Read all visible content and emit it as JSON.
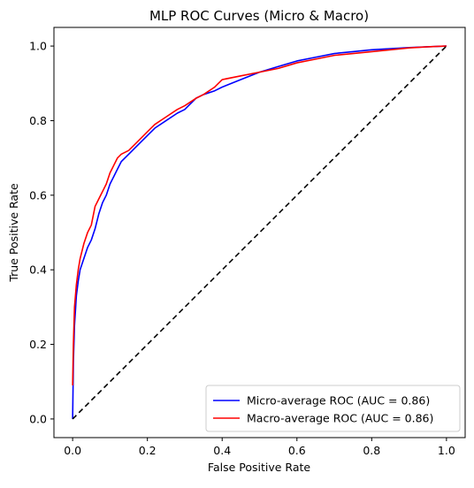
{
  "chart_data": {
    "type": "line",
    "title": "MLP ROC Curves (Micro & Macro)",
    "xlabel": "False Positive Rate",
    "ylabel": "True Positive Rate",
    "xlim": [
      -0.05,
      1.05
    ],
    "ylim": [
      -0.05,
      1.05
    ],
    "xticks": [
      0.0,
      0.2,
      0.4,
      0.6,
      0.8,
      1.0
    ],
    "yticks": [
      0.0,
      0.2,
      0.4,
      0.6,
      0.8,
      1.0
    ],
    "xtick_labels": [
      "0.0",
      "0.2",
      "0.4",
      "0.6",
      "0.8",
      "1.0"
    ],
    "ytick_labels": [
      "0.0",
      "0.2",
      "0.4",
      "0.6",
      "0.8",
      "1.0"
    ],
    "grid": false,
    "legend_position": "lower-right",
    "series": [
      {
        "name": "Micro-average ROC (AUC = 0.86)",
        "color": "#0000ff",
        "x": [
          0.0,
          0.002,
          0.005,
          0.01,
          0.015,
          0.02,
          0.03,
          0.04,
          0.05,
          0.06,
          0.07,
          0.08,
          0.09,
          0.1,
          0.11,
          0.12,
          0.13,
          0.15,
          0.17,
          0.2,
          0.22,
          0.25,
          0.28,
          0.3,
          0.33,
          0.35,
          0.38,
          0.4,
          0.45,
          0.5,
          0.55,
          0.6,
          0.65,
          0.7,
          0.75,
          0.8,
          0.85,
          0.9,
          0.95,
          1.0
        ],
        "y": [
          0.0,
          0.15,
          0.25,
          0.33,
          0.37,
          0.4,
          0.43,
          0.46,
          0.48,
          0.51,
          0.55,
          0.58,
          0.6,
          0.63,
          0.65,
          0.67,
          0.69,
          0.71,
          0.73,
          0.76,
          0.78,
          0.8,
          0.82,
          0.83,
          0.86,
          0.87,
          0.88,
          0.89,
          0.91,
          0.93,
          0.945,
          0.96,
          0.97,
          0.98,
          0.985,
          0.99,
          0.993,
          0.996,
          0.998,
          1.0
        ]
      },
      {
        "name": "Macro-average ROC (AUC = 0.86)",
        "color": "#ff0000",
        "x": [
          0.0,
          0.002,
          0.005,
          0.01,
          0.015,
          0.02,
          0.03,
          0.04,
          0.05,
          0.06,
          0.07,
          0.08,
          0.09,
          0.1,
          0.11,
          0.12,
          0.13,
          0.15,
          0.17,
          0.2,
          0.22,
          0.25,
          0.28,
          0.3,
          0.33,
          0.35,
          0.38,
          0.4,
          0.45,
          0.5,
          0.55,
          0.6,
          0.65,
          0.7,
          0.75,
          0.8,
          0.85,
          0.9,
          0.95,
          1.0
        ],
        "y": [
          0.09,
          0.2,
          0.3,
          0.36,
          0.4,
          0.43,
          0.47,
          0.5,
          0.52,
          0.57,
          0.59,
          0.61,
          0.63,
          0.66,
          0.68,
          0.7,
          0.71,
          0.72,
          0.74,
          0.77,
          0.79,
          0.81,
          0.83,
          0.84,
          0.86,
          0.87,
          0.89,
          0.91,
          0.92,
          0.93,
          0.94,
          0.955,
          0.965,
          0.975,
          0.98,
          0.985,
          0.99,
          0.995,
          0.998,
          1.0
        ]
      },
      {
        "name": "",
        "color": "#000000",
        "dashed": true,
        "x": [
          0.0,
          1.0
        ],
        "y": [
          0.0,
          1.0
        ]
      }
    ]
  }
}
